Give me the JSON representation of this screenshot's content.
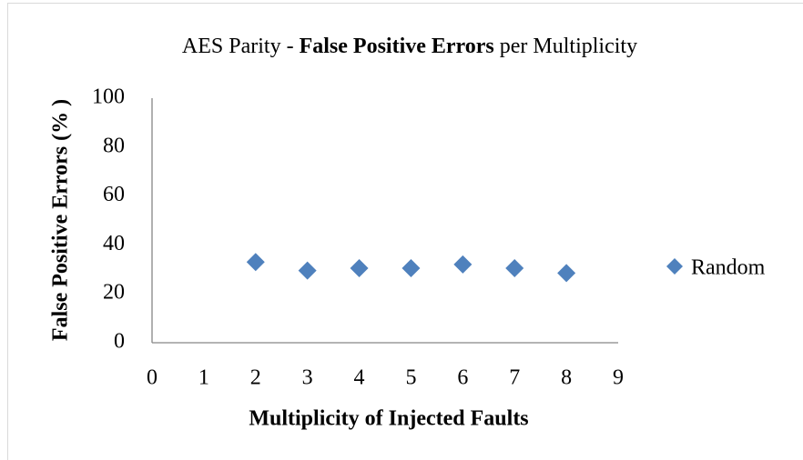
{
  "chart_data": {
    "type": "scatter",
    "title": [
      "AES Parity -",
      "False Positive Errors",
      "per Multiplicity"
    ],
    "x_label": "Multiplicity  of Injected  Faults",
    "y_label": "False Positive Errors  (% )",
    "series": [
      {
        "name": "Random",
        "color": "#4f81bd",
        "x": [
          2,
          3,
          4,
          5,
          6,
          7,
          8
        ],
        "values": [
          33,
          29.5,
          30.5,
          30.5,
          32,
          30.5,
          28.5
        ]
      }
    ],
    "xlim": [
      0,
      9
    ],
    "xticks": [
      0,
      1,
      2,
      3,
      4,
      5,
      6,
      7,
      8,
      9
    ],
    "ylim": [
      0,
      100
    ],
    "yticks": [
      0,
      20,
      40,
      60,
      80,
      100
    ],
    "grid": false,
    "legend": "right"
  }
}
